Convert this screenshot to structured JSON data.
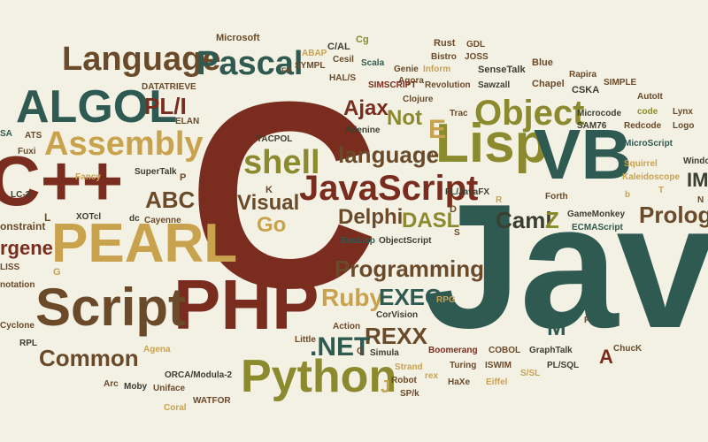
{
  "colors": {
    "background": "#f3f1e4",
    "rust": "#7a2d1f",
    "teal": "#2f5a52",
    "olive": "#8b8a2e",
    "brown": "#6b4a2a",
    "sand": "#c9a24e",
    "dark": "#3b3f2f"
  },
  "words": {
    "c": "C",
    "java": "Java",
    "cpp": "C++",
    "php": "PHP",
    "script": "Script",
    "pearl": "PEARL",
    "python": "Python",
    "lisp": "Lisp",
    "vb": "VB",
    "javascript": "JavaScript",
    "algol": "ALGOL",
    "assembly": "Assembly",
    "language": "Language",
    "pascal": "Pascal",
    "object": "Object",
    "shell": "shell",
    "language_lc": "language",
    "programming": "Programming",
    "ruby": "Ruby",
    "exec": "EXEC",
    "rexx": "REXX",
    "prolog": "Prolog",
    "delphi": "Delphi",
    "dasl": "DASL",
    "caml": "Caml",
    "common": "Common",
    "net": ".NET",
    "go": "Go",
    "visual": "Visual",
    "abc": "ABC",
    "pl_i": "PL/I",
    "ajax": "Ajax",
    "not": "Not",
    "e_letter": "E",
    "z_letter": "Z",
    "m_letter": "M",
    "a_letter": "A",
    "j_letter": "J",
    "microsoft": "Microsoft",
    "abap": "ABAP",
    "sympl": "SYMPL",
    "c_al": "C/AL",
    "cesil": "Cesil",
    "cg": "Cg",
    "rust": "Rust",
    "gdl": "GDL",
    "joss": "JOSS",
    "scala": "Scala",
    "hal_s": "HAL/S",
    "genie": "Genie",
    "inform": "Inform",
    "bistro": "Bistro",
    "sensetalk": "SenseTalk",
    "blue": "Blue",
    "agora": "Agora",
    "simscript": "SIMSCRIPT",
    "revolution": "Revolution",
    "sawzall": "Sawzall",
    "rapira": "Rapira",
    "chapel": "Chapel",
    "cska": "CSKA",
    "simple": "SIMPLE",
    "datatrieve": "DATATRIEVE",
    "fp": "FP",
    "clojure": "Clojure",
    "trac": "Trac",
    "elan": "ELAN",
    "autoit": "AutoIt",
    "code": "code",
    "lynx": "Lynx",
    "logo": "Logo",
    "microcode": "Microcode",
    "redcode": "Redcode",
    "sam76": "SAM76",
    "adenine": "Adenine",
    "tacpol": "TACPOL",
    "sa": "SA",
    "ats": "ATS",
    "fuxi": "Fuxi",
    "microscript": "MicroScript",
    "window": "Window",
    "im": "IM",
    "fancy": "Fancy",
    "supertalk": "SuperTalk",
    "a_plus": "A+",
    "squirrel": "Squirrel",
    "kaleidoscope": "Kaleidoscope",
    "lc3": "LC-3",
    "fl_javafx": "FL/JavaFX",
    "r_letter": "R",
    "forth": "Forth",
    "gamemonkey": "GameMonkey",
    "ecmascript": "ECMAScript",
    "xotcl": "XOTcl",
    "dc": "dc",
    "cayenne": "Cayenne",
    "constraint": "onstraint",
    "gene": "rgene",
    "euslisp": "EusLisp",
    "objectscript": "ObjectScript",
    "lss": "LISS",
    "notation": "notation",
    "rpg": "RPG",
    "action": "Action",
    "corvision": "CorVision",
    "cyclone": "Cyclone",
    "rpl": "RPL",
    "little": "Little",
    "agena": "Agena",
    "q_letter": "Q",
    "simula": "Simula",
    "boomerang": "Boomerang",
    "cobol": "COBOL",
    "graphtalk": "GraphTalk",
    "chuck": "ChucK",
    "arc": "Arc",
    "moby": "Moby",
    "uniface": "Uniface",
    "orca": "ORCA/Modula-2",
    "strand": "Strand",
    "turing": "Turing",
    "iswim": "ISWIM",
    "pl_sql": "PL/SQL",
    "robot": "Robot",
    "sp_k": "SP/k",
    "rex": "rex",
    "haxe": "HaXe",
    "eiffel": "Eiffel",
    "s_sl": "S/SL",
    "coral": "Coral",
    "watfor": "WATFOR",
    "p_letter": "P",
    "k_letter": "K",
    "g_letter": "G",
    "l_letter": "L",
    "d_letter": "D",
    "b_letter": "b",
    "t_letter": "T",
    "f_letter": "F",
    "s_letter": "S",
    "n_letter": "N"
  }
}
